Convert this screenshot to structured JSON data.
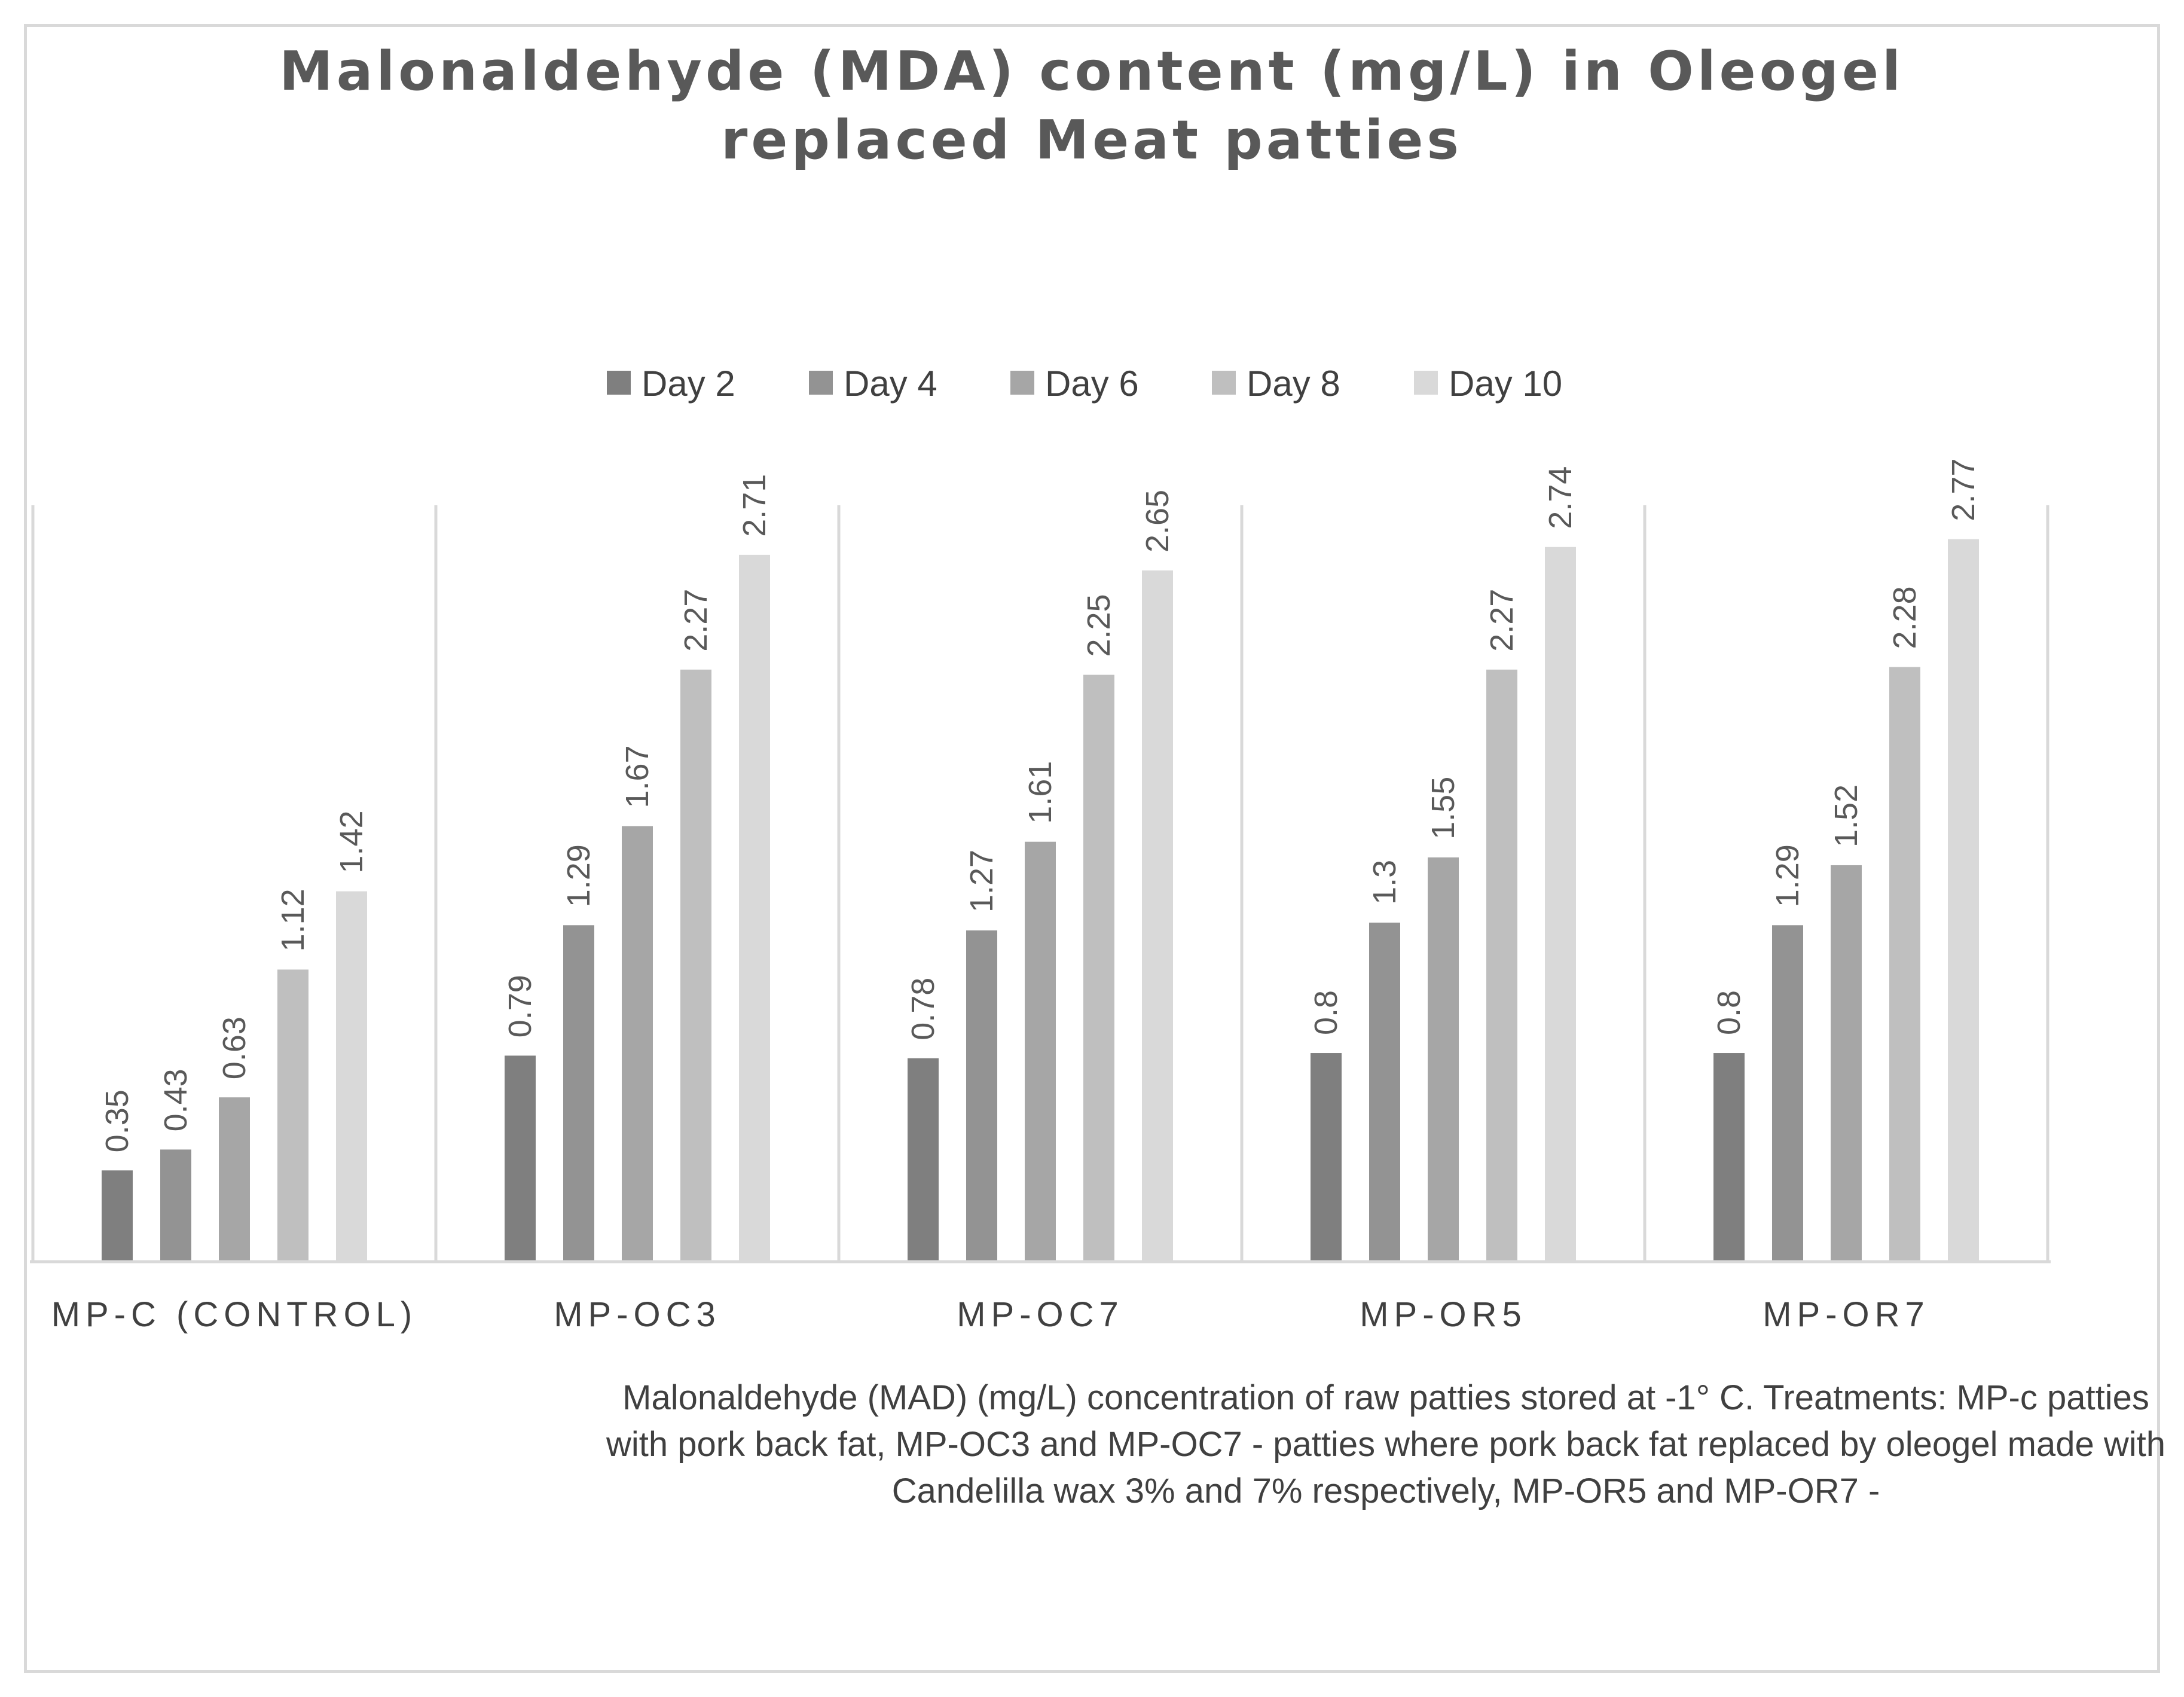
{
  "chart_data": {
    "type": "bar",
    "title": "Malonaldehyde (MDA) content (mg/L) in Oleogel replaced Meat patties",
    "title_lines": [
      "Malonaldehyde (MDA) content (mg/L) in Oleogel",
      "replaced Meat patties"
    ],
    "categories": [
      "MP-C (CONTROL)",
      "MP-OC3",
      "MP-OC7",
      "MP-OR5",
      "MP-OR7"
    ],
    "series": [
      {
        "name": "Day 2",
        "color": "#7f7f7f",
        "values": [
          0.35,
          0.79,
          0.78,
          0.8,
          0.8
        ]
      },
      {
        "name": "Day 4",
        "color": "#939393",
        "values": [
          0.43,
          1.29,
          1.27,
          1.3,
          1.29
        ]
      },
      {
        "name": "Day 6",
        "color": "#a6a6a6",
        "values": [
          0.63,
          1.67,
          1.61,
          1.55,
          1.52
        ]
      },
      {
        "name": "Day 8",
        "color": "#bfbfbf",
        "values": [
          1.12,
          2.27,
          2.25,
          2.27,
          2.28
        ]
      },
      {
        "name": "Day 10",
        "color": "#d9d9d9",
        "values": [
          1.42,
          2.71,
          2.65,
          2.74,
          2.77
        ]
      }
    ],
    "ylim": [
      0,
      2.9
    ],
    "xlabel": "",
    "ylabel": "",
    "grid": false,
    "legend_position": "top",
    "caption_lines": [
      "Malonaldehyde (MAD) (mg/L) concentration of raw patties stored at -1° C. Treatments: MP-c patties",
      "with pork back fat, MP-OC3 and MP-OC7 -  patties where pork back fat replaced by oleogel made with",
      "Candelilla wax 3% and 7% respectively, MP-OR5 and MP-OR7 -"
    ]
  }
}
